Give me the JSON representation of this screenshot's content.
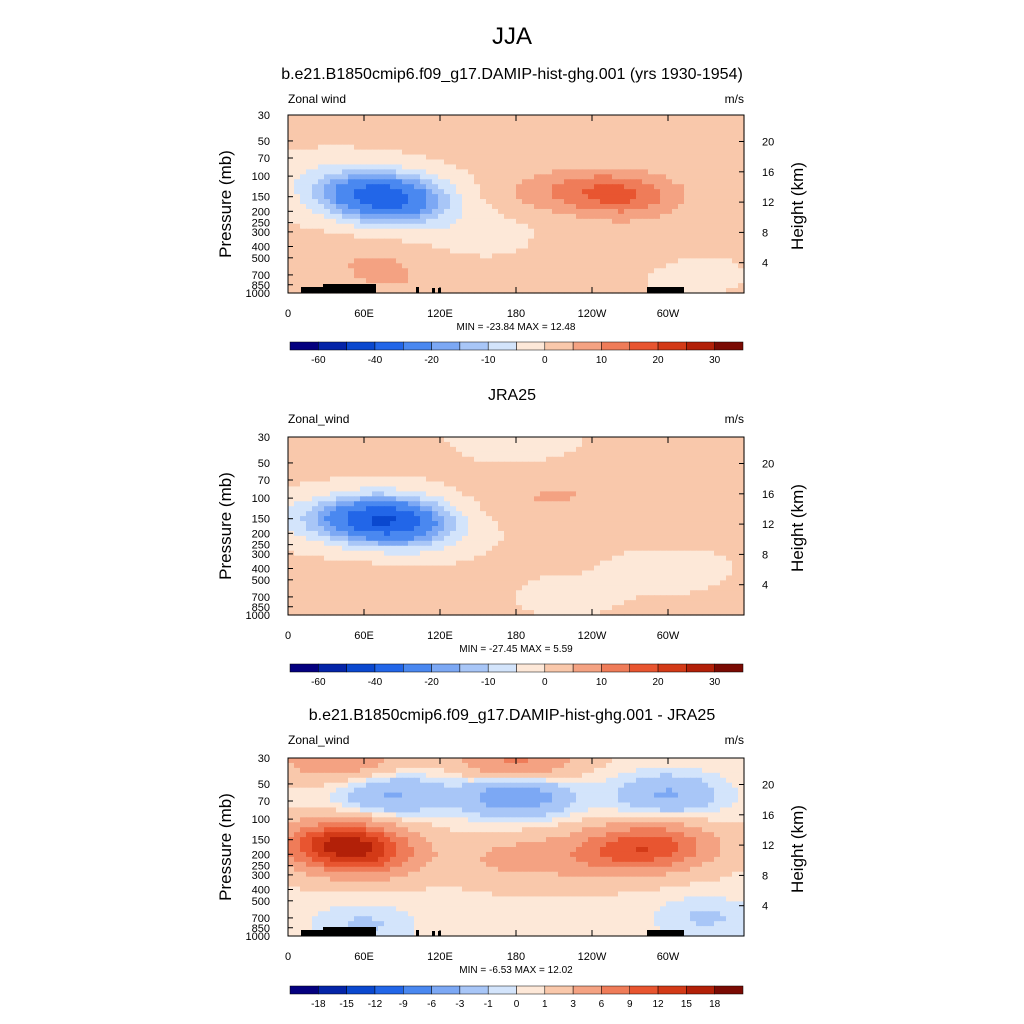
{
  "figure": {
    "title": "JJA"
  },
  "colors": {
    "sequential_diverging": [
      "#04007f",
      "#0424a8",
      "#0a48cf",
      "#2266e8",
      "#4a88f0",
      "#7ca8f4",
      "#a8c6f7",
      "#d3e4fb",
      "#fde8d8",
      "#f9c8ab",
      "#f4a282",
      "#ef7c59",
      "#e85530",
      "#d33a17",
      "#b22008",
      "#7a0a03"
    ]
  },
  "chart_data": [
    {
      "type": "heatmap",
      "title": "b.e21.B1850cmip6.f09_g17.DAMIP-hist-ghg.001 (yrs 1930-1954)",
      "left_label": "Zonal wind",
      "units": "m/s",
      "ylabel": "Pressure (mb)",
      "ylabel_right": "Height (km)",
      "x_ticks": [
        "0",
        "60E",
        "120E",
        "180",
        "120W",
        "60W"
      ],
      "y_ticks": [
        "30",
        "50",
        "70",
        "100",
        "150",
        "200",
        "250",
        "300",
        "400",
        "500",
        "700",
        "850",
        "1000"
      ],
      "y_right_ticks": [
        "20",
        "16",
        "12",
        "8",
        "4"
      ],
      "min_label": "MIN = -23.84",
      "max_label": "MAX =  12.48",
      "min": -23.84,
      "max": 12.48,
      "colorbar_labels": [
        "-60",
        "-40",
        "-20",
        "-10",
        "0",
        "10",
        "20",
        "30"
      ],
      "blobs": [
        {
          "lon": 80,
          "p": 150,
          "v": -21
        },
        {
          "lon": 60,
          "p": 140,
          "v": -14
        },
        {
          "lon": 90,
          "p": 200,
          "v": -8
        },
        {
          "lon": 30,
          "p": 100,
          "v": -4
        },
        {
          "lon": 270,
          "p": 150,
          "v": 11
        },
        {
          "lon": 240,
          "p": 130,
          "v": 7
        },
        {
          "lon": 200,
          "p": 140,
          "v": 4
        },
        {
          "lon": 260,
          "p": 400,
          "v": 2
        },
        {
          "lon": 60,
          "p": 500,
          "v": 3
        },
        {
          "lon": 80,
          "p": 750,
          "v": 4
        },
        {
          "lon": 150,
          "p": 300,
          "v": -3
        },
        {
          "lon": 320,
          "p": 700,
          "v": -2
        }
      ],
      "topo": true
    },
    {
      "type": "heatmap",
      "title": "JRA25",
      "left_label": "Zonal_wind",
      "units": "m/s",
      "ylabel": "Pressure (mb)",
      "ylabel_right": "Height (km)",
      "x_ticks": [
        "0",
        "60E",
        "120E",
        "180",
        "120W",
        "60W"
      ],
      "y_ticks": [
        "30",
        "50",
        "70",
        "100",
        "150",
        "200",
        "250",
        "300",
        "400",
        "500",
        "700",
        "850",
        "1000"
      ],
      "y_right_ticks": [
        "20",
        "16",
        "12",
        "8",
        "4"
      ],
      "min_label": "MIN = -27.45",
      "max_label": "MAX =   5.59",
      "min": -27.45,
      "max": 5.59,
      "colorbar_labels": [
        "-60",
        "-40",
        "-20",
        "-10",
        "0",
        "10",
        "20",
        "30"
      ],
      "blobs": [
        {
          "lon": 80,
          "p": 150,
          "v": -25
        },
        {
          "lon": 60,
          "p": 150,
          "v": -14
        },
        {
          "lon": 100,
          "p": 200,
          "v": -9
        },
        {
          "lon": 20,
          "p": 150,
          "v": -5
        },
        {
          "lon": 200,
          "p": 100,
          "v": 4
        },
        {
          "lon": 260,
          "p": 80,
          "v": 3
        },
        {
          "lon": 300,
          "p": 150,
          "v": 4
        },
        {
          "lon": 80,
          "p": 600,
          "v": 3
        },
        {
          "lon": 300,
          "p": 400,
          "v": -3
        },
        {
          "lon": 180,
          "p": 30,
          "v": -4
        },
        {
          "lon": 220,
          "p": 700,
          "v": -2
        }
      ],
      "topo": false
    },
    {
      "type": "heatmap",
      "title": "b.e21.B1850cmip6.f09_g17.DAMIP-hist-ghg.001 - JRA25",
      "left_label": "Zonal_wind",
      "units": "m/s",
      "ylabel": "Pressure (mb)",
      "ylabel_right": "Height (km)",
      "x_ticks": [
        "0",
        "60E",
        "120E",
        "180",
        "120W",
        "60W"
      ],
      "y_ticks": [
        "30",
        "50",
        "70",
        "100",
        "150",
        "200",
        "250",
        "300",
        "400",
        "500",
        "700",
        "850",
        "1000"
      ],
      "y_right_ticks": [
        "20",
        "16",
        "12",
        "8",
        "4"
      ],
      "min_label": "MIN =  -6.53",
      "max_label": "MAX =  12.02",
      "min": -6.53,
      "max": 12.02,
      "colorbar_labels": [
        "-18",
        "-15",
        "-12",
        "-9",
        "-6",
        "-3",
        "-1",
        "0",
        "1",
        "3",
        "6",
        "9",
        "12",
        "15",
        "18"
      ],
      "blobs": [
        {
          "lon": 40,
          "p": 160,
          "v": 11
        },
        {
          "lon": 60,
          "p": 200,
          "v": 8
        },
        {
          "lon": 290,
          "p": 170,
          "v": 9
        },
        {
          "lon": 250,
          "p": 200,
          "v": 5
        },
        {
          "lon": 180,
          "p": 220,
          "v": 3
        },
        {
          "lon": 180,
          "p": 62,
          "v": -6
        },
        {
          "lon": 80,
          "p": 62,
          "v": -4
        },
        {
          "lon": 300,
          "p": 62,
          "v": -4
        },
        {
          "lon": 180,
          "p": 32,
          "v": 6
        },
        {
          "lon": 40,
          "p": 30,
          "v": 5
        },
        {
          "lon": 330,
          "p": 700,
          "v": -2
        },
        {
          "lon": 60,
          "p": 800,
          "v": -2
        }
      ],
      "topo": true
    }
  ]
}
